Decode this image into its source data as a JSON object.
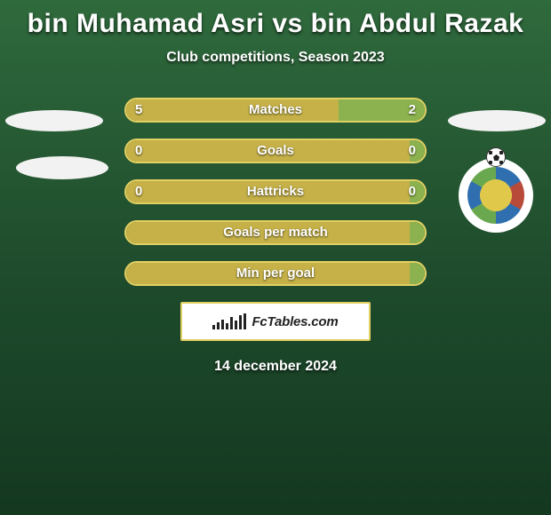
{
  "title": "bin Muhamad Asri vs bin Abdul Razak",
  "subtitle": "Club competitions, Season 2023",
  "date": "14 december 2024",
  "brand": "FcTables.com",
  "colors": {
    "left": "#c5b148",
    "right": "#8bb24e",
    "border": "#e1d064"
  },
  "rows": [
    {
      "label": "Matches",
      "left": "5",
      "right": "2",
      "left_pct": 71,
      "right_pct": 29
    },
    {
      "label": "Goals",
      "left": "0",
      "right": "0",
      "left_pct": 95,
      "right_pct": 5
    },
    {
      "label": "Hattricks",
      "left": "0",
      "right": "0",
      "left_pct": 95,
      "right_pct": 5
    },
    {
      "label": "Goals per match",
      "left": "",
      "right": "",
      "left_pct": 95,
      "right_pct": 5
    },
    {
      "label": "Min per goal",
      "left": "",
      "right": "",
      "left_pct": 95,
      "right_pct": 5
    }
  ],
  "brand_bar_heights": [
    5,
    8,
    11,
    7,
    14,
    10,
    16,
    18
  ]
}
